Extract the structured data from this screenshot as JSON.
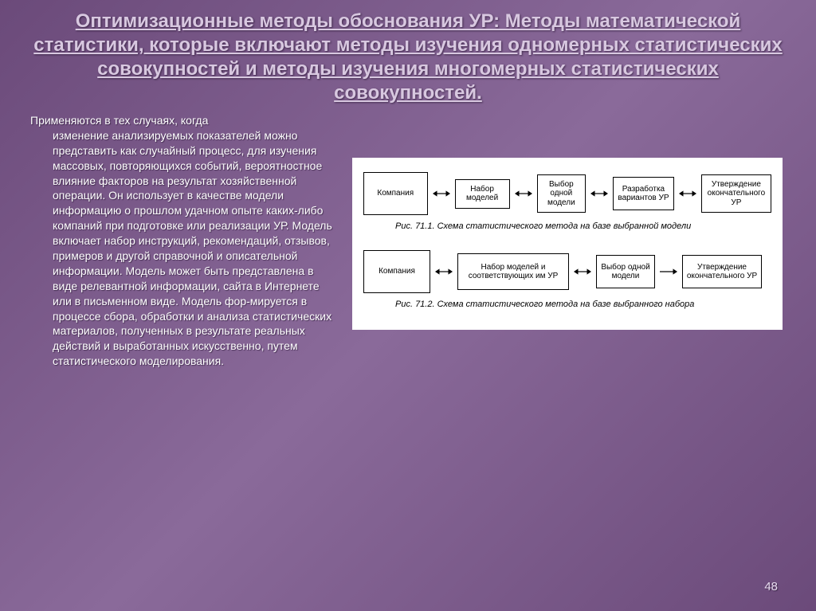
{
  "title": "Оптимизационные методы обоснования УР:    Методы математической статистики, которые включают методы изучения одномерных статистических совокупностей и методы изучения многомерных статистических совокупностей.",
  "paragraph_first": "Применяются в тех случаях, когда",
  "paragraph_rest": "изменение анализируемых показателей можно представить как случайный процесс, для изучения массовых, повторяющихся событий, вероятностное влияние  факторов на результат хозяйственной операции. Он использует в качестве модели информацию о прошлом удачном опыте каких-либо компаний при подготовке или реализации УР. Модель включает набор инструкций, рекомендаций, отзывов, примеров и другой справочной и описательной информации. Модель может быть представлена в виде релевантной информации, сайта в Интернете или в письменном виде. Модель фор-мируется в процессе сбора, обработки и анализа статистических материалов, полученных в результате реальных действий и выработанных искусственно, путем статистического моделирования.",
  "diagram1": {
    "nodes": [
      "Компания",
      "Набор моделей",
      "Выбор одной модели",
      "Разработка вариантов УР",
      "Утверждение окончательного УР"
    ],
    "node_widths": [
      84,
      72,
      64,
      80,
      92
    ],
    "node_heights": [
      54,
      36,
      42,
      42,
      42
    ],
    "caption": "Рис. 71.1. Схема статистического метода на базе выбранной модели"
  },
  "diagram2": {
    "nodes": [
      "Компания",
      "Набор моделей и соответствующих им УР",
      "Выбор одной модели",
      "Утверждение окончательного УР"
    ],
    "node_widths": [
      84,
      140,
      74,
      100
    ],
    "node_heights": [
      54,
      46,
      42,
      42
    ],
    "caption": "Рис. 71.2. Схема статистического метода на базе выбранного набора"
  },
  "page_number": "48",
  "colors": {
    "title": "#d8c8e0",
    "text": "#ffffff",
    "node_border": "#000000",
    "diagram_bg": "#ffffff"
  }
}
